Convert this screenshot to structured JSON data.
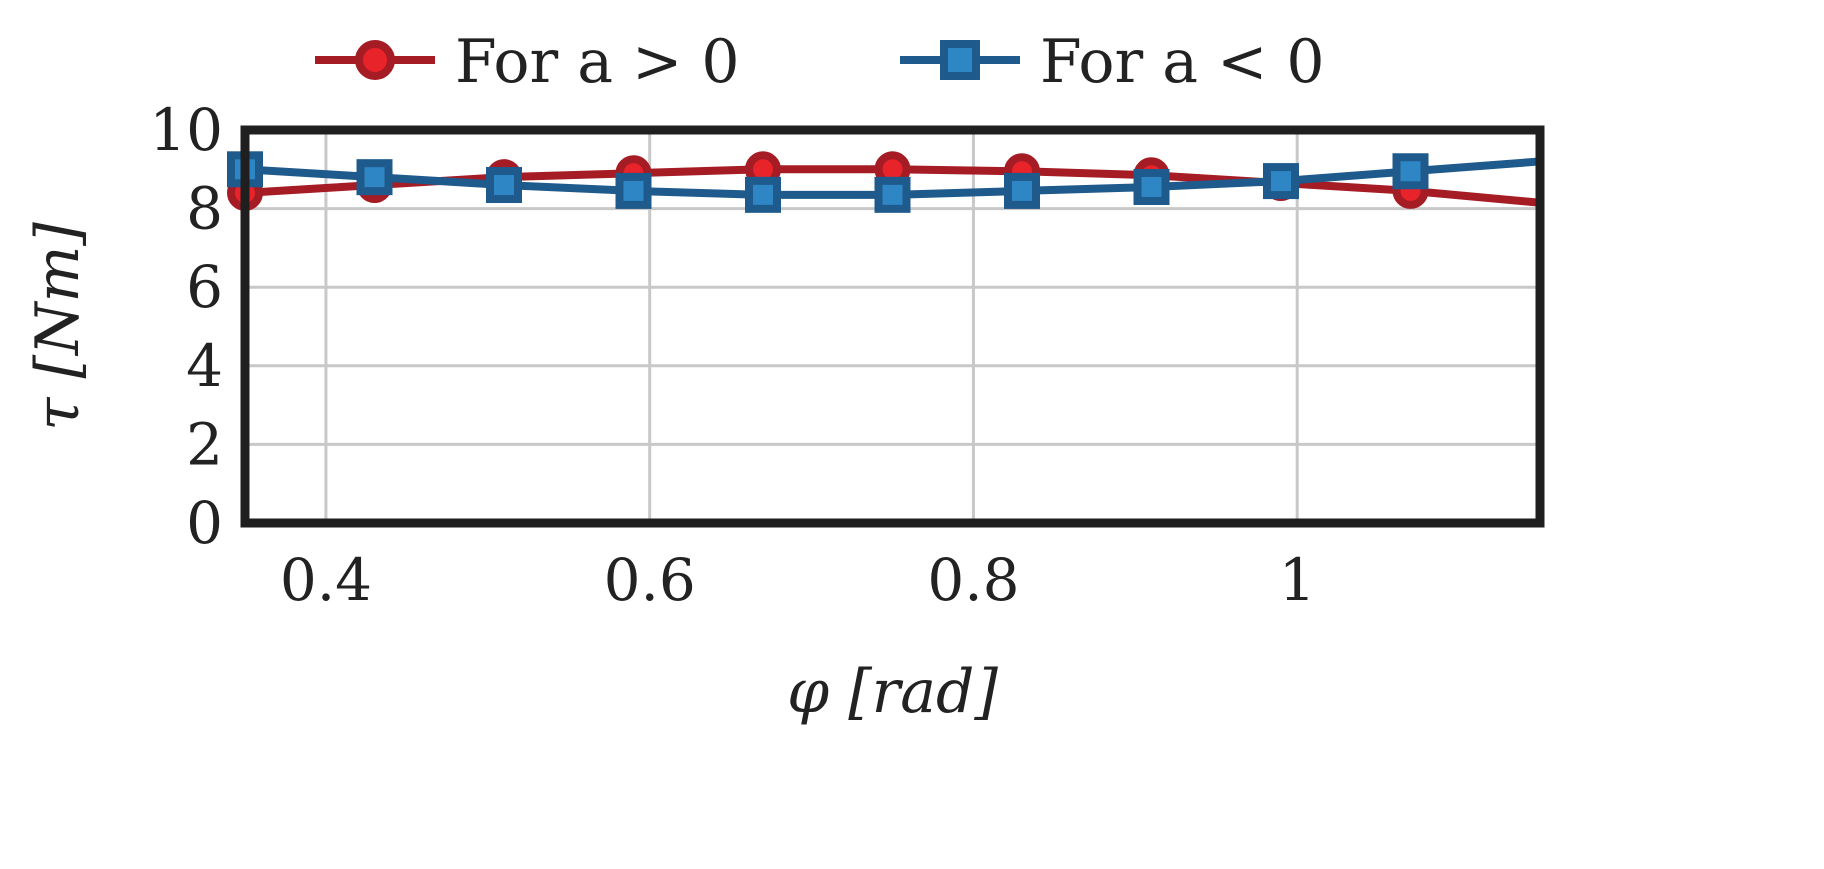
{
  "chart_data": {
    "type": "line",
    "xlabel": "φ [rad]",
    "ylabel": "τ [Nm]",
    "xlim": [
      0.35,
      1.15
    ],
    "ylim": [
      0,
      10
    ],
    "xticks": [
      0.4,
      0.6,
      0.8,
      1.0
    ],
    "xtick_labels": [
      "0.4",
      "0.6",
      "0.8",
      "1"
    ],
    "yticks": [
      0,
      2,
      4,
      6,
      8,
      10
    ],
    "ytick_labels": [
      "0",
      "2",
      "4",
      "6",
      "8",
      "10"
    ],
    "grid": true,
    "legend_position": "top-center",
    "series": [
      {
        "name": "For a > 0",
        "color": "#a51c24",
        "marker_color": "#e8232a",
        "marker": "circle",
        "x": [
          0.35,
          0.43,
          0.51,
          0.59,
          0.67,
          0.75,
          0.83,
          0.91,
          0.99,
          1.07,
          1.15
        ],
        "y": [
          8.4,
          8.6,
          8.8,
          8.9,
          9.0,
          9.0,
          8.95,
          8.85,
          8.65,
          8.45,
          8.15
        ]
      },
      {
        "name": "For a < 0",
        "color": "#1f5a8c",
        "marker_color": "#2f86c4",
        "marker": "square",
        "x": [
          0.35,
          0.43,
          0.51,
          0.59,
          0.67,
          0.75,
          0.83,
          0.91,
          0.99,
          1.07,
          1.15
        ],
        "y": [
          9.0,
          8.8,
          8.6,
          8.45,
          8.35,
          8.35,
          8.45,
          8.55,
          8.7,
          8.95,
          9.2
        ]
      }
    ]
  }
}
